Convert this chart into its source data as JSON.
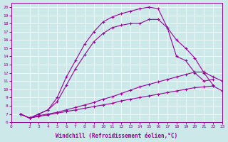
{
  "bg_color": "#cce8e8",
  "line_color": "#990099",
  "xlabel": "Windchill (Refroidissement éolien,°C)",
  "xlim": [
    0,
    23
  ],
  "ylim": [
    6,
    20.5
  ],
  "xticks": [
    0,
    2,
    3,
    4,
    5,
    6,
    7,
    8,
    9,
    10,
    11,
    12,
    13,
    14,
    15,
    16,
    17,
    18,
    19,
    20,
    21,
    22,
    23
  ],
  "yticks": [
    6,
    7,
    8,
    9,
    10,
    11,
    12,
    13,
    14,
    15,
    16,
    17,
    18,
    19,
    20
  ],
  "line1": {
    "x": [
      1,
      2,
      3,
      4,
      5,
      6,
      7,
      8,
      9,
      10,
      11,
      12,
      13,
      14,
      15,
      16,
      17,
      18,
      19,
      20,
      21,
      22,
      23
    ],
    "y": [
      7.0,
      6.5,
      6.7,
      6.9,
      7.1,
      7.3,
      7.5,
      7.7,
      7.9,
      8.1,
      8.3,
      8.6,
      8.8,
      9.0,
      9.2,
      9.4,
      9.6,
      9.8,
      10.0,
      10.2,
      10.3,
      10.4,
      9.8
    ]
  },
  "line2": {
    "x": [
      1,
      2,
      3,
      4,
      5,
      6,
      7,
      8,
      9,
      10,
      11,
      12,
      13,
      14,
      15,
      16,
      17,
      18,
      19,
      20,
      21,
      22,
      23
    ],
    "y": [
      7.0,
      6.5,
      6.8,
      7.0,
      7.2,
      7.5,
      7.8,
      8.1,
      8.4,
      8.8,
      9.1,
      9.5,
      9.9,
      10.3,
      10.6,
      10.9,
      11.2,
      11.5,
      11.8,
      12.1,
      12.1,
      11.5,
      11.0
    ]
  },
  "line3": {
    "x": [
      1,
      2,
      3,
      4,
      5,
      6,
      7,
      8,
      9,
      10,
      11,
      12,
      13,
      14,
      15,
      16,
      17,
      18,
      19,
      20,
      21,
      22
    ],
    "y": [
      7.0,
      6.5,
      7.0,
      7.5,
      8.5,
      10.5,
      12.5,
      14.2,
      15.8,
      16.8,
      17.5,
      17.8,
      18.0,
      18.0,
      18.5,
      18.5,
      17.5,
      14.0,
      13.5,
      12.0,
      11.0,
      11.2
    ]
  },
  "line4": {
    "x": [
      1,
      2,
      3,
      4,
      5,
      6,
      7,
      8,
      9,
      10,
      11,
      12,
      13,
      14,
      15,
      16,
      17,
      18,
      19,
      20,
      21,
      22
    ],
    "y": [
      7.0,
      6.5,
      7.0,
      7.5,
      9.0,
      11.5,
      13.5,
      15.5,
      17.0,
      18.2,
      18.8,
      19.2,
      19.5,
      19.8,
      20.0,
      19.8,
      17.5,
      16.0,
      15.0,
      13.8,
      12.0,
      10.5
    ]
  }
}
